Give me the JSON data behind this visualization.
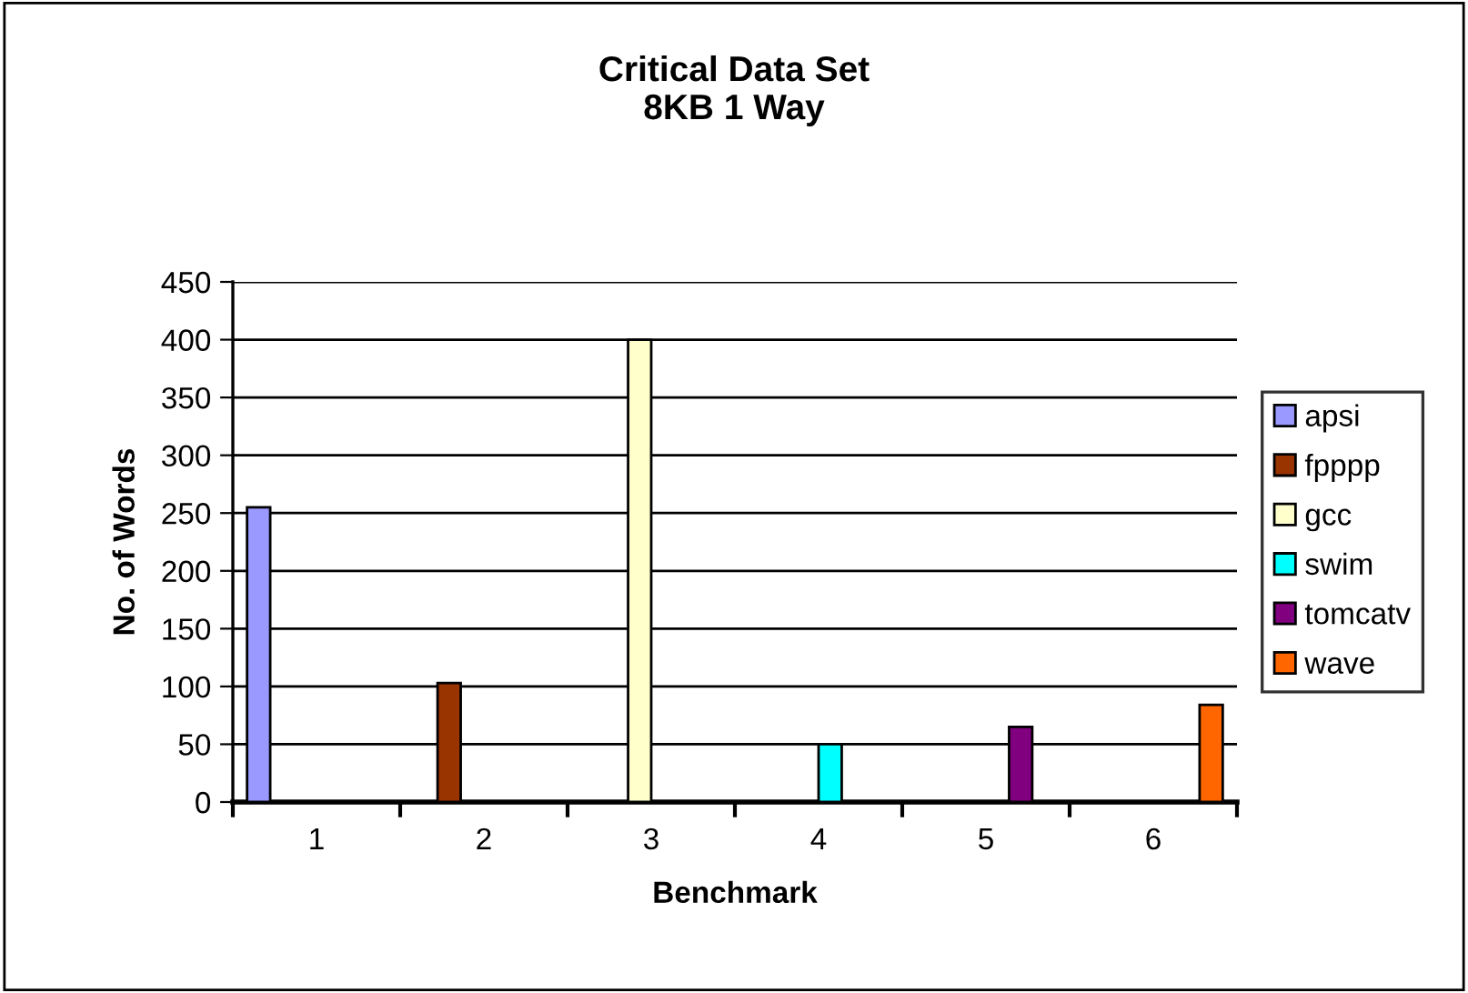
{
  "chart_data": {
    "type": "bar",
    "title": "Critical Data Set\n8KB 1 Way",
    "xlabel": "Benchmark",
    "ylabel": "No. of Words",
    "categories": [
      "1",
      "2",
      "3",
      "4",
      "5",
      "6"
    ],
    "series": [
      {
        "name": "apsi",
        "color": "#9999ff",
        "values": [
          255,
          null,
          null,
          null,
          null,
          null
        ]
      },
      {
        "name": "fpppp",
        "color": "#993300",
        "values": [
          null,
          103,
          null,
          null,
          null,
          null
        ]
      },
      {
        "name": "gcc",
        "color": "#ffffcc",
        "values": [
          null,
          null,
          400,
          null,
          null,
          null
        ]
      },
      {
        "name": "swim",
        "color": "#00ffff",
        "values": [
          null,
          null,
          null,
          50,
          null,
          null
        ]
      },
      {
        "name": "tomcatv",
        "color": "#800080",
        "values": [
          null,
          null,
          null,
          null,
          65,
          null
        ]
      },
      {
        "name": "wave",
        "color": "#ff6600",
        "values": [
          null,
          null,
          null,
          null,
          null,
          84
        ]
      }
    ],
    "ylim": [
      0,
      450
    ],
    "yticks": [
      0,
      50,
      100,
      150,
      200,
      250,
      300,
      350,
      400,
      450
    ],
    "grid": "y",
    "legend": "right"
  }
}
